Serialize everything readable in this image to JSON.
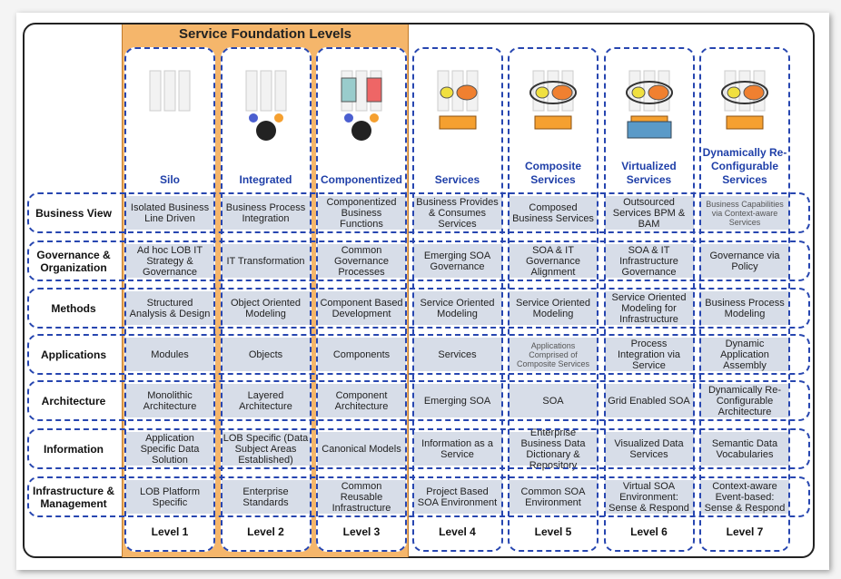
{
  "header": {
    "title": "Service Foundation Levels"
  },
  "columns": [
    {
      "name": "Silo",
      "level": "Level 1"
    },
    {
      "name": "Integrated",
      "level": "Level 2"
    },
    {
      "name": "Componentized",
      "level": "Level 3"
    },
    {
      "name": "Services",
      "level": "Level 4"
    },
    {
      "name": "Composite Services",
      "level": "Level 5"
    },
    {
      "name": "Virtualized Services",
      "level": "Level 6"
    },
    {
      "name": "Dynamically Re-Configurable Services",
      "level": "Level 7"
    }
  ],
  "rows": [
    {
      "label": "Business View",
      "cells": [
        "Isolated Business Line Driven",
        "Business Process Integration",
        "Componentized Business Functions",
        "Business Provides & Consumes Services",
        "Composed Business Services",
        "Outsourced Services BPM & BAM",
        "Business Capabilities via Context-aware Services"
      ]
    },
    {
      "label": "Governance & Organization",
      "cells": [
        "Ad hoc LOB IT Strategy & Governance",
        "IT Transformation",
        "Common Governance Processes",
        "Emerging SOA Governance",
        "SOA & IT Governance Alignment",
        "SOA & IT Infrastructure Governance",
        "Governance via Policy"
      ]
    },
    {
      "label": "Methods",
      "cells": [
        "Structured Analysis & Design",
        "Object Oriented Modeling",
        "Component Based Development",
        "Service Oriented Modeling",
        "Service Oriented Modeling",
        "Service Oriented Modeling for Infrastructure",
        "Business Process Modeling"
      ]
    },
    {
      "label": "Applications",
      "cells": [
        "Modules",
        "Objects",
        "Components",
        "Services",
        "Applications Comprised of Composite Services",
        "Process Integration via Service",
        "Dynamic Application Assembly"
      ]
    },
    {
      "label": "Architecture",
      "cells": [
        "Monolithic Architecture",
        "Layered Architecture",
        "Component Architecture",
        "Emerging SOA",
        "SOA",
        "Grid Enabled SOA",
        "Dynamically Re-Configurable Architecture"
      ]
    },
    {
      "label": "Information",
      "cells": [
        "Application Specific Data Solution",
        "LOB Specific (Data Subject Areas Established)",
        "Canonical Models",
        "Information as a Service",
        "Enterprise Business Data Dictionary & Repository",
        "Visualized Data Services",
        "Semantic Data Vocabularies"
      ]
    },
    {
      "label": "Infrastructure & Management",
      "cells": [
        "LOB Platform Specific",
        "Enterprise Standards",
        "Common Reusable Infrastructure",
        "Project Based SOA Environment",
        "Common SOA Environment",
        "Virtual SOA Environment: Sense & Respond",
        "Context-aware Event-based: Sense & Respond"
      ]
    }
  ]
}
